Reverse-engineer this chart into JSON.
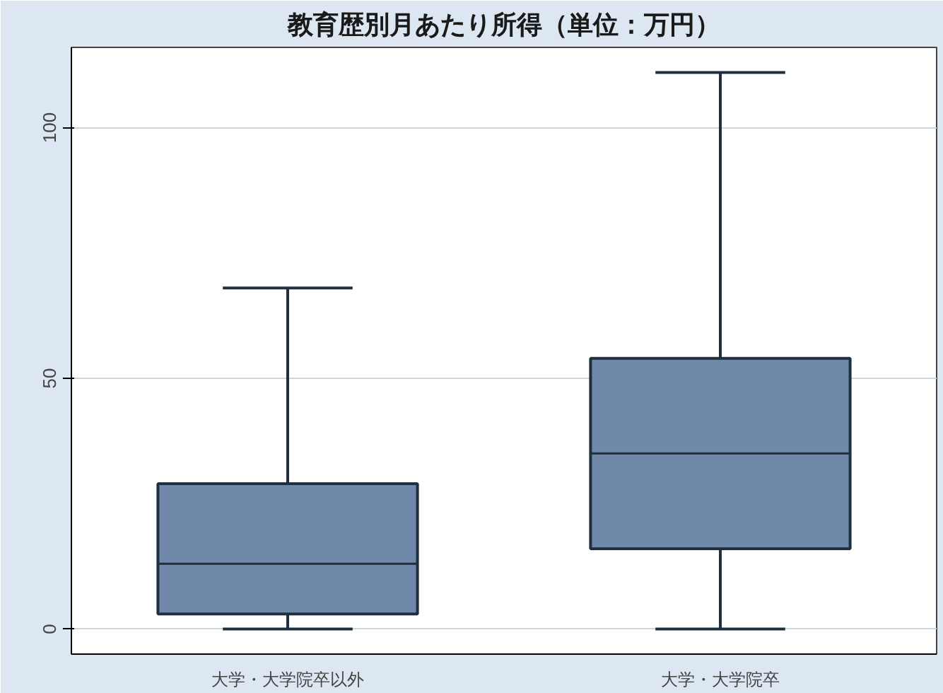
{
  "chart_data": {
    "type": "box",
    "title": "教育歴別月あたり所得（単位：万円）",
    "categories": [
      "大学・大学院卒以外",
      "大学・大学院卒"
    ],
    "boxes": [
      {
        "low": 0,
        "q1": 3,
        "median": 13,
        "q3": 29,
        "high": 68
      },
      {
        "low": 0,
        "q1": 16,
        "median": 35,
        "q3": 54,
        "high": 111
      }
    ],
    "color": "#7089aa",
    "ylim": [
      -5,
      116
    ],
    "yticks": [
      0,
      50,
      100
    ],
    "grid": "y"
  }
}
